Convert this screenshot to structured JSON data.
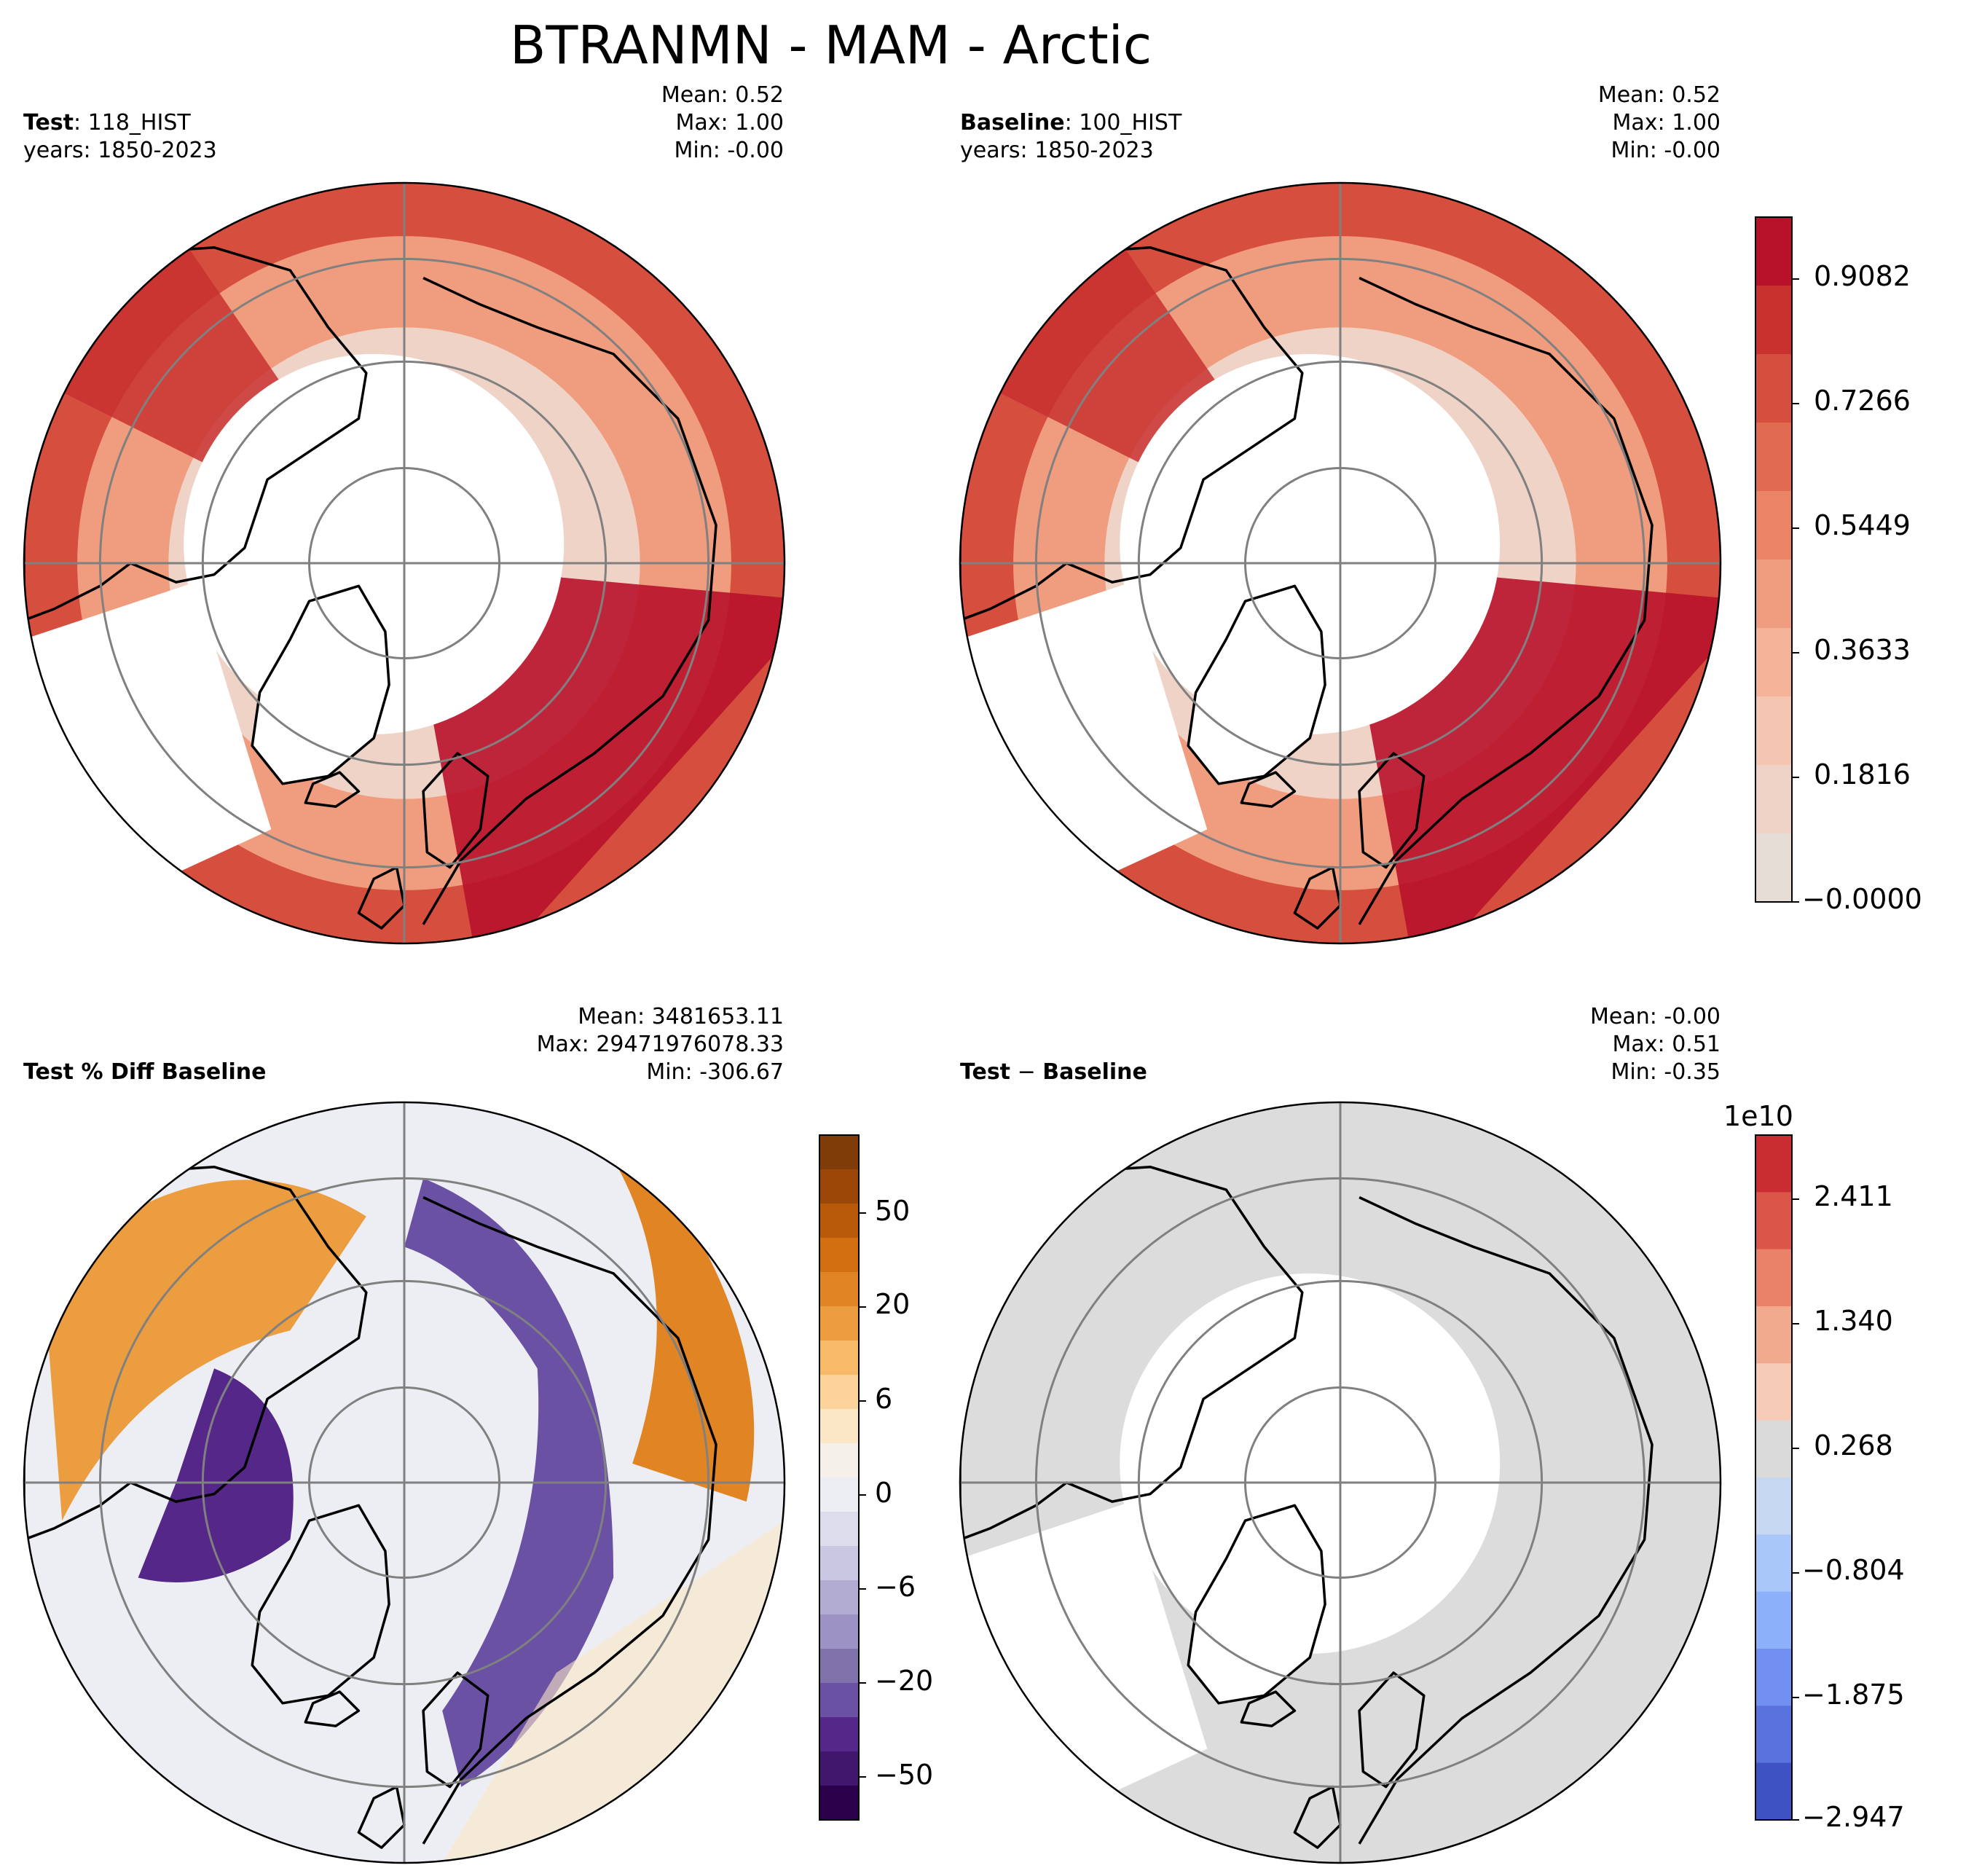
{
  "figure": {
    "title": "BTRANMN - MAM - Arctic"
  },
  "panels": {
    "test": {
      "label_bold": "Test",
      "label_rest": ": 118_HIST",
      "years": "years: 1850-2023",
      "mean": "Mean:  0.52",
      "max": "Max:  1.00",
      "min": "Min: -0.00"
    },
    "baseline": {
      "label_bold": "Baseline",
      "label_rest": ": 100_HIST",
      "years": "years: 1850-2023",
      "mean": "Mean:  0.52",
      "max": "Max:  1.00",
      "min": "Min: -0.00"
    },
    "pctdiff": {
      "label_bold": "Test % Diff Baseline",
      "mean": "Mean: 3481653.11",
      "max": "Max: 29471976078.33",
      "min": "Min: -306.67"
    },
    "diff": {
      "label_bold": "Test",
      "label_sep": " − ",
      "label_bold2": "Baseline",
      "mean": "Mean: -0.00",
      "max": "Max:  0.51",
      "min": "Min: -0.35"
    }
  },
  "colorbars": {
    "main": {
      "ticks": [
        "0.9082",
        "0.7266",
        "0.5449",
        "0.3633",
        "0.1816",
        "−0.0000"
      ],
      "colors": [
        "#b8122b",
        "#c9312f",
        "#d64e3d",
        "#e06b50",
        "#ea8465",
        "#f09c7e",
        "#f4b299",
        "#f4c5b1",
        "#efd3c6",
        "#e6dcd6"
      ]
    },
    "pctdiff": {
      "ticks": [
        "50",
        "20",
        "6",
        "0",
        "−6",
        "−20",
        "−50"
      ],
      "colors": [
        "#7f3b08",
        "#9a4707",
        "#b85a0a",
        "#d16f11",
        "#e08424",
        "#eb9d3f",
        "#f7ba69",
        "#fdd39b",
        "#fbe7c6",
        "#f5f0ea",
        "#eceef3",
        "#dcdcec",
        "#c9c7e1",
        "#b2abd2",
        "#9c93c4",
        "#8073ac",
        "#6a51a3",
        "#542788",
        "#41176e",
        "#2d004b"
      ]
    },
    "diff": {
      "exponent": "1e10",
      "ticks": [
        "2.411",
        "1.340",
        "0.268",
        "−0.804",
        "−1.875",
        "−2.947"
      ],
      "colors": [
        "#c92d31",
        "#db5549",
        "#ea826a",
        "#f2aa8e",
        "#f6cbb5",
        "#dadada",
        "#c6d8f1",
        "#a9c7f8",
        "#8db0fb",
        "#7190f2",
        "#5a72de",
        "#3f52c4"
      ]
    }
  },
  "legend_colors": {
    "land_outline": "#000000",
    "graticule": "#808080",
    "masked": "#ffffff",
    "diff_fill": "#dcdcdc"
  }
}
